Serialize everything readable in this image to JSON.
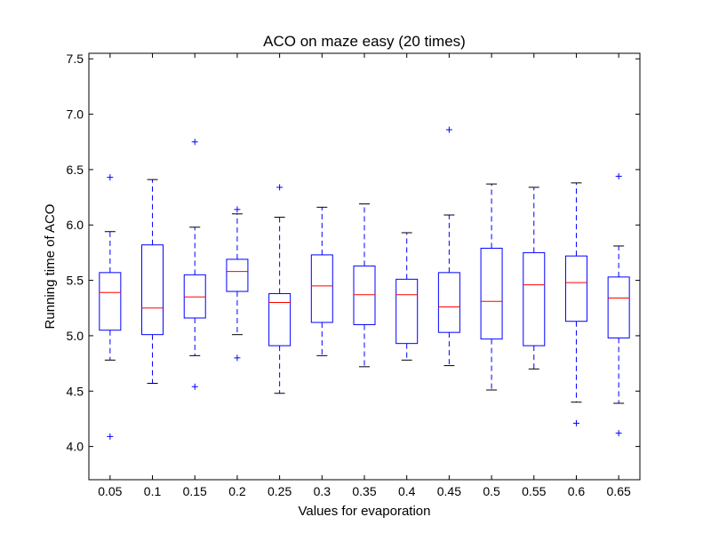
{
  "chart_data": {
    "type": "boxplot",
    "title": "ACO on maze easy (20 times)",
    "xlabel": "Values for evaporation",
    "ylabel": "Running time of ACO",
    "categories": [
      "0.05",
      "0.1",
      "0.15",
      "0.2",
      "0.25",
      "0.3",
      "0.35",
      "0.4",
      "0.45",
      "0.5",
      "0.55",
      "0.6",
      "0.65"
    ],
    "ylim": [
      3.7,
      7.55
    ],
    "yticks": [
      "4.0",
      "4.5",
      "5.0",
      "5.5",
      "6.0",
      "6.5",
      "7.0",
      "7.5"
    ],
    "grid": false,
    "colors": {
      "box": "#0000ff",
      "median": "#ff0000",
      "whisker": "#0000ff",
      "cap": "#000000",
      "flier": "#0000ff"
    },
    "boxes": [
      {
        "q1": 5.05,
        "median": 5.39,
        "q3": 5.57,
        "whisker_low": 4.78,
        "whisker_high": 5.94,
        "fliers": [
          6.43,
          4.09
        ]
      },
      {
        "q1": 5.01,
        "median": 5.25,
        "q3": 5.82,
        "whisker_low": 4.57,
        "whisker_high": 6.41,
        "fliers": []
      },
      {
        "q1": 5.16,
        "median": 5.35,
        "q3": 5.55,
        "whisker_low": 4.82,
        "whisker_high": 5.98,
        "fliers": [
          6.75,
          4.54
        ]
      },
      {
        "q1": 5.4,
        "median": 5.58,
        "q3": 5.69,
        "whisker_low": 5.01,
        "whisker_high": 6.1,
        "fliers": [
          6.14,
          4.8
        ]
      },
      {
        "q1": 4.91,
        "median": 5.3,
        "q3": 5.38,
        "whisker_low": 4.48,
        "whisker_high": 6.07,
        "fliers": [
          6.34
        ]
      },
      {
        "q1": 5.12,
        "median": 5.45,
        "q3": 5.73,
        "whisker_low": 4.82,
        "whisker_high": 6.16,
        "fliers": []
      },
      {
        "q1": 5.1,
        "median": 5.37,
        "q3": 5.63,
        "whisker_low": 4.72,
        "whisker_high": 6.19,
        "fliers": []
      },
      {
        "q1": 4.93,
        "median": 5.37,
        "q3": 5.51,
        "whisker_low": 4.78,
        "whisker_high": 5.93,
        "fliers": []
      },
      {
        "q1": 5.03,
        "median": 5.26,
        "q3": 5.57,
        "whisker_low": 4.73,
        "whisker_high": 6.09,
        "fliers": [
          6.86
        ]
      },
      {
        "q1": 4.97,
        "median": 5.31,
        "q3": 5.79,
        "whisker_low": 4.51,
        "whisker_high": 6.37,
        "fliers": []
      },
      {
        "q1": 4.91,
        "median": 5.46,
        "q3": 5.75,
        "whisker_low": 4.7,
        "whisker_high": 6.34,
        "fliers": []
      },
      {
        "q1": 5.13,
        "median": 5.48,
        "q3": 5.72,
        "whisker_low": 4.4,
        "whisker_high": 6.38,
        "fliers": [
          4.21
        ]
      },
      {
        "q1": 4.98,
        "median": 5.34,
        "q3": 5.53,
        "whisker_low": 4.39,
        "whisker_high": 5.81,
        "fliers": [
          6.44,
          4.12
        ]
      }
    ]
  }
}
